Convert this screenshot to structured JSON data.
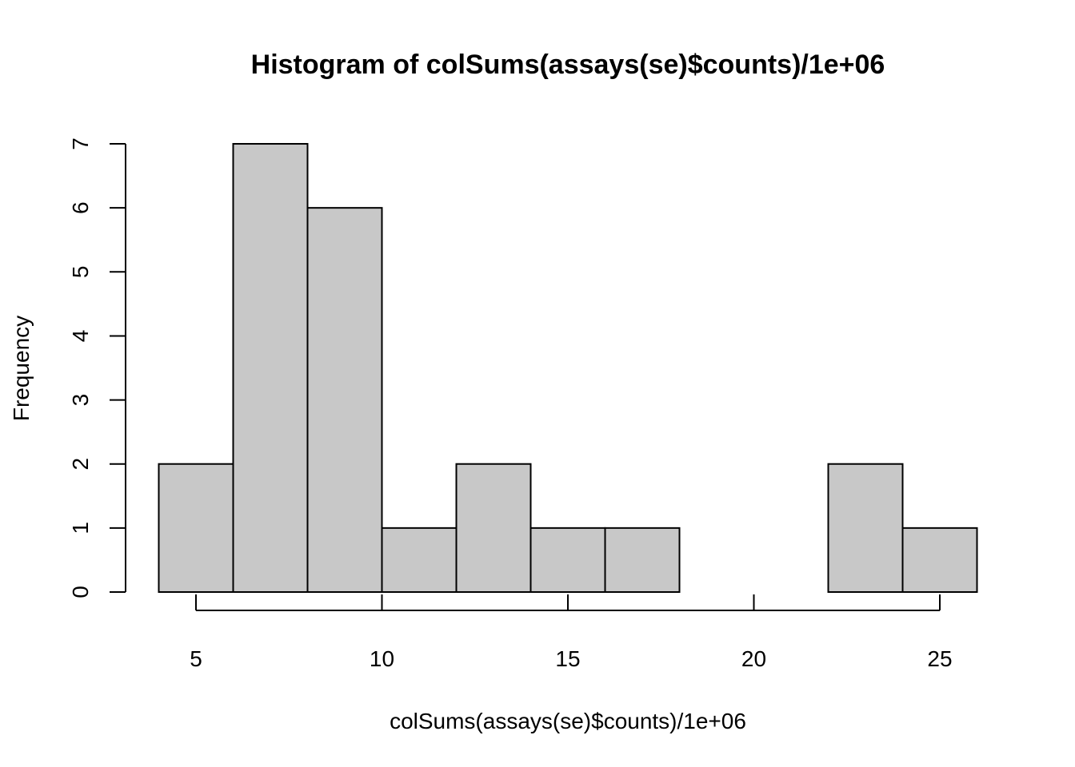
{
  "chart_data": {
    "type": "bar",
    "title": "Histogram of colSums(assays(se)$counts)/1e+06",
    "xlabel": "colSums(assays(se)$counts)/1e+06",
    "ylabel": "Frequency",
    "bins": [
      {
        "x0": 4,
        "x1": 6,
        "count": 2
      },
      {
        "x0": 6,
        "x1": 8,
        "count": 7
      },
      {
        "x0": 8,
        "x1": 10,
        "count": 6
      },
      {
        "x0": 10,
        "x1": 12,
        "count": 1
      },
      {
        "x0": 12,
        "x1": 14,
        "count": 2
      },
      {
        "x0": 14,
        "x1": 16,
        "count": 1
      },
      {
        "x0": 16,
        "x1": 18,
        "count": 1
      },
      {
        "x0": 18,
        "x1": 20,
        "count": 0
      },
      {
        "x0": 20,
        "x1": 22,
        "count": 0
      },
      {
        "x0": 22,
        "x1": 24,
        "count": 2
      },
      {
        "x0": 24,
        "x1": 26,
        "count": 1
      }
    ],
    "xticks": [
      5,
      10,
      15,
      20,
      25
    ],
    "yticks": [
      0,
      1,
      2,
      3,
      4,
      5,
      6,
      7
    ],
    "xlim": [
      4,
      26
    ],
    "ylim": [
      0,
      7
    ],
    "grid": false,
    "bar_color": "#c8c8c8"
  }
}
